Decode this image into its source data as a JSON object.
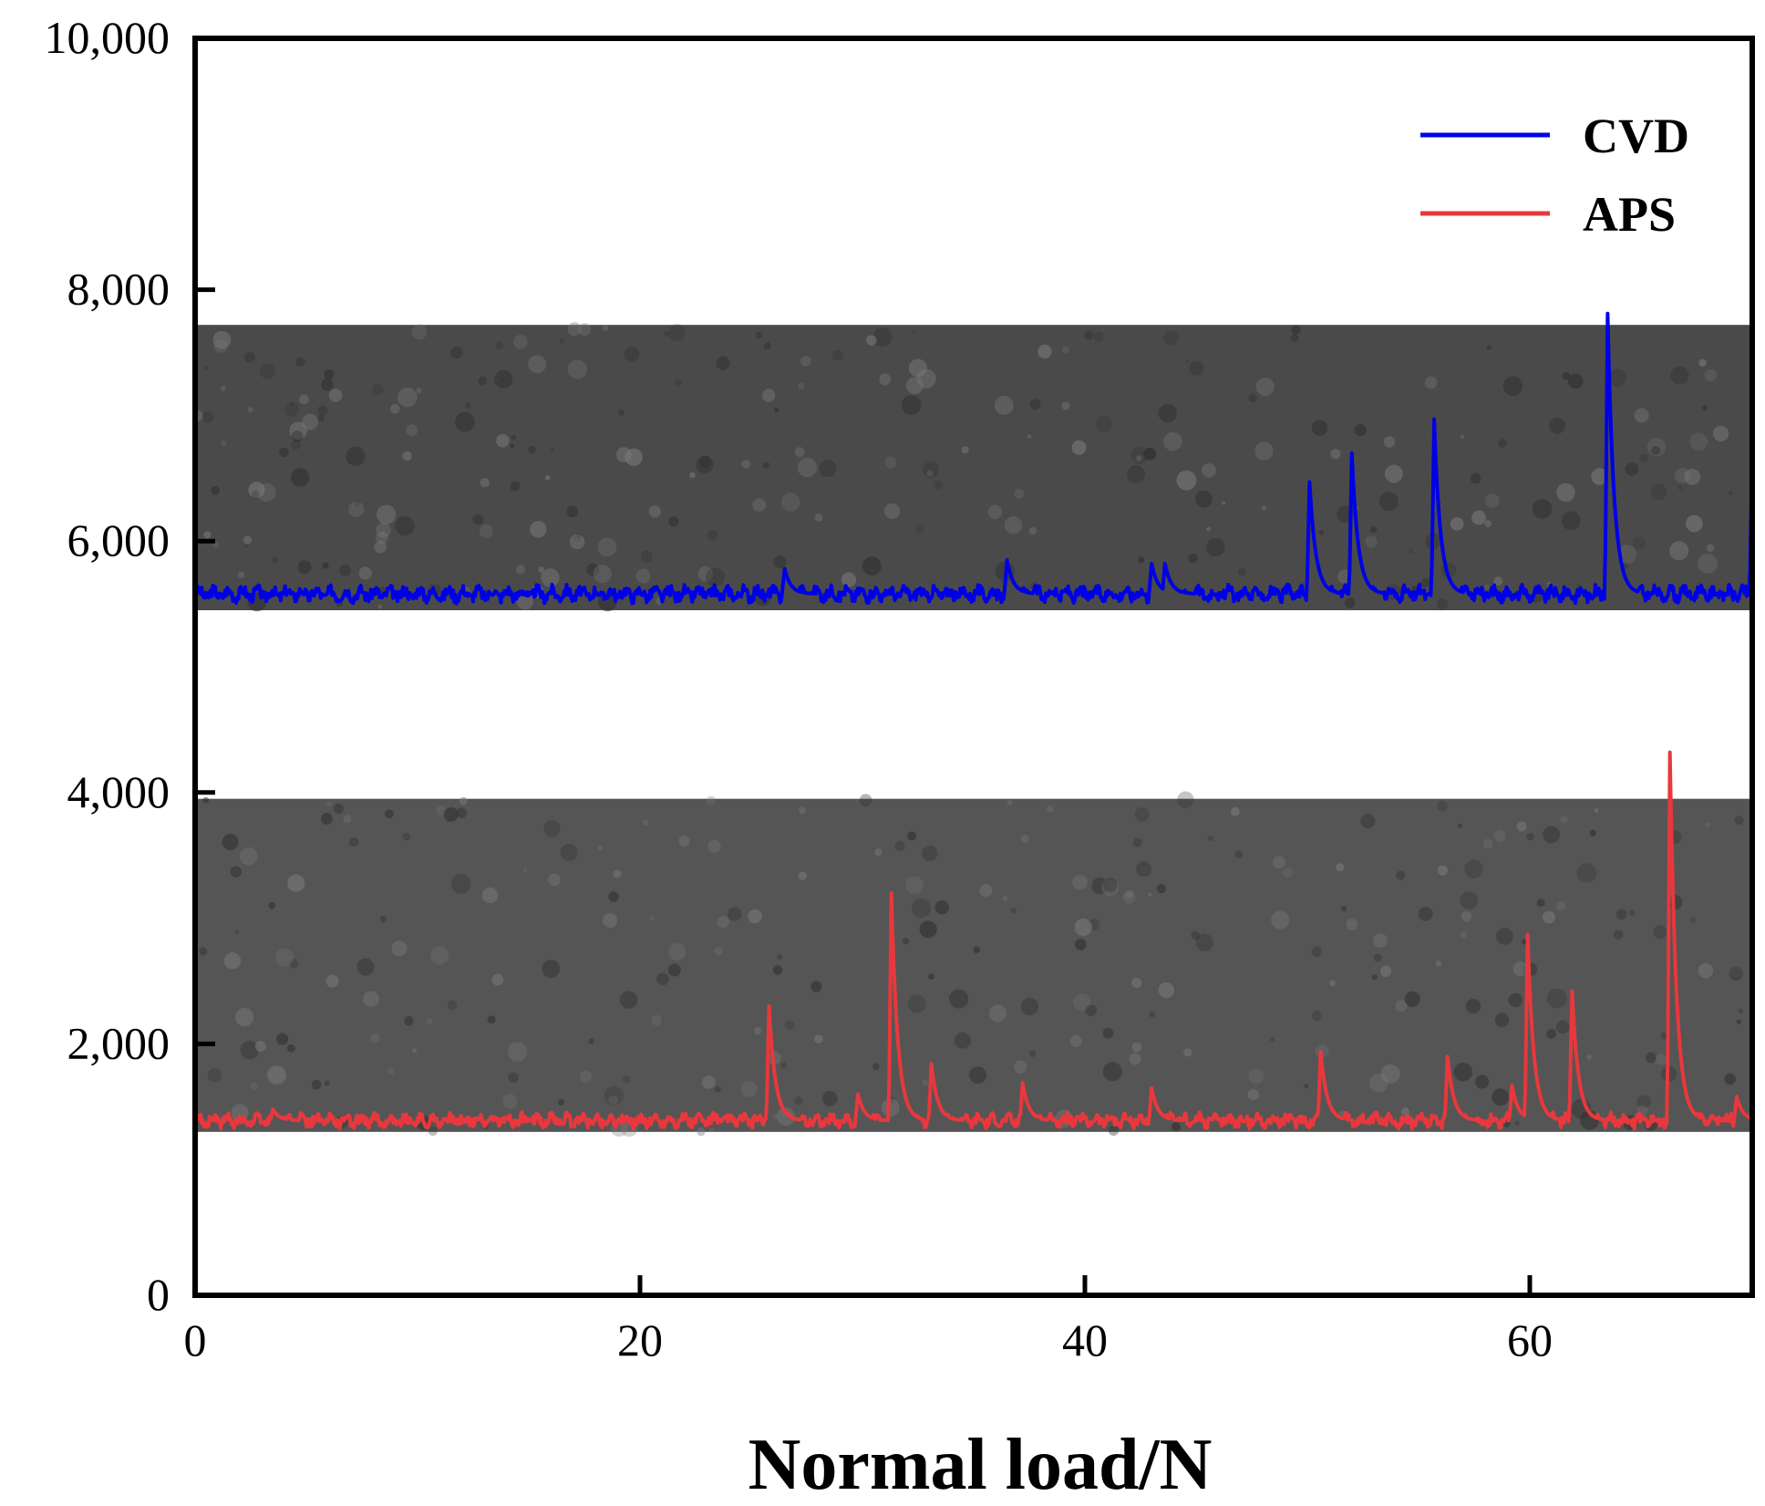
{
  "chart_data": {
    "type": "line",
    "title": "",
    "xlabel": "Normal load/N",
    "ylabel": "",
    "xlim": [
      0,
      70
    ],
    "ylim": [
      0,
      10000
    ],
    "xticks": [
      0,
      20,
      40,
      60
    ],
    "yticks": [
      0,
      2000,
      4000,
      6000,
      8000,
      10000
    ],
    "xtick_labels": [
      "0",
      "20",
      "40",
      "60"
    ],
    "ytick_labels": [
      "0",
      "2,000",
      "4,000",
      "6,000",
      "8,000",
      "10,000"
    ],
    "grid": false,
    "legend_position": "top-right",
    "background_bands": [
      {
        "name": "CVD micrograph band",
        "ymin": 5450,
        "ymax": 7720,
        "color": "#4a4a4a"
      },
      {
        "name": "APS micrograph band",
        "ymin": 1300,
        "ymax": 3950,
        "color": "#555555"
      }
    ],
    "series": [
      {
        "name": "CVD",
        "color": "#0000e6",
        "baseline": 5580,
        "noise": 90,
        "peaks": [
          {
            "x": 26.5,
            "y": 5780
          },
          {
            "x": 36.5,
            "y": 5850
          },
          {
            "x": 43.0,
            "y": 5820
          },
          {
            "x": 43.6,
            "y": 5820
          },
          {
            "x": 50.1,
            "y": 6470
          },
          {
            "x": 52.0,
            "y": 6700
          },
          {
            "x": 55.7,
            "y": 6970
          },
          {
            "x": 63.5,
            "y": 7810
          },
          {
            "x": 70.0,
            "y": 6720
          }
        ]
      },
      {
        "name": "APS",
        "color": "#e8383d",
        "baseline": 1390,
        "noise": 80,
        "peaks": [
          {
            "x": 3.5,
            "y": 1480
          },
          {
            "x": 25.8,
            "y": 2300
          },
          {
            "x": 29.8,
            "y": 1600
          },
          {
            "x": 31.3,
            "y": 3200
          },
          {
            "x": 33.1,
            "y": 1840
          },
          {
            "x": 37.2,
            "y": 1690
          },
          {
            "x": 43.0,
            "y": 1650
          },
          {
            "x": 50.6,
            "y": 1940
          },
          {
            "x": 56.3,
            "y": 1900
          },
          {
            "x": 59.2,
            "y": 1670
          },
          {
            "x": 59.9,
            "y": 2870
          },
          {
            "x": 61.9,
            "y": 2420
          },
          {
            "x": 66.3,
            "y": 4320
          },
          {
            "x": 69.3,
            "y": 1580
          }
        ]
      }
    ]
  }
}
